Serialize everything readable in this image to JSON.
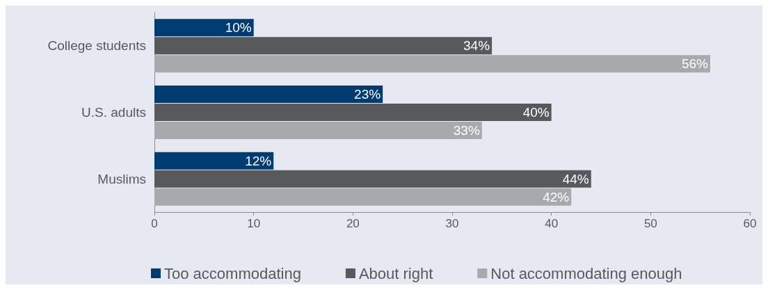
{
  "chart_data": {
    "type": "bar",
    "orientation": "horizontal",
    "categories": [
      "College students",
      "U.S. adults",
      "Muslims"
    ],
    "series": [
      {
        "name": "Too accommodating",
        "color": "#003b71",
        "values": [
          10,
          23,
          12
        ],
        "value_labels": [
          "10%",
          "23%",
          "12%"
        ]
      },
      {
        "name": "About right",
        "color": "#58595b",
        "values": [
          34,
          40,
          44
        ],
        "value_labels": [
          "34%",
          "40%",
          "44%"
        ]
      },
      {
        "name": "Not accommodating enough",
        "color": "#a7a9ac",
        "values": [
          56,
          33,
          42
        ],
        "value_labels": [
          "56%",
          "33%",
          "42%"
        ]
      }
    ],
    "xlim": [
      0,
      60
    ],
    "xticks": [
      0,
      10,
      20,
      30,
      40,
      50,
      60
    ],
    "grid": false,
    "legend": "bottom"
  }
}
